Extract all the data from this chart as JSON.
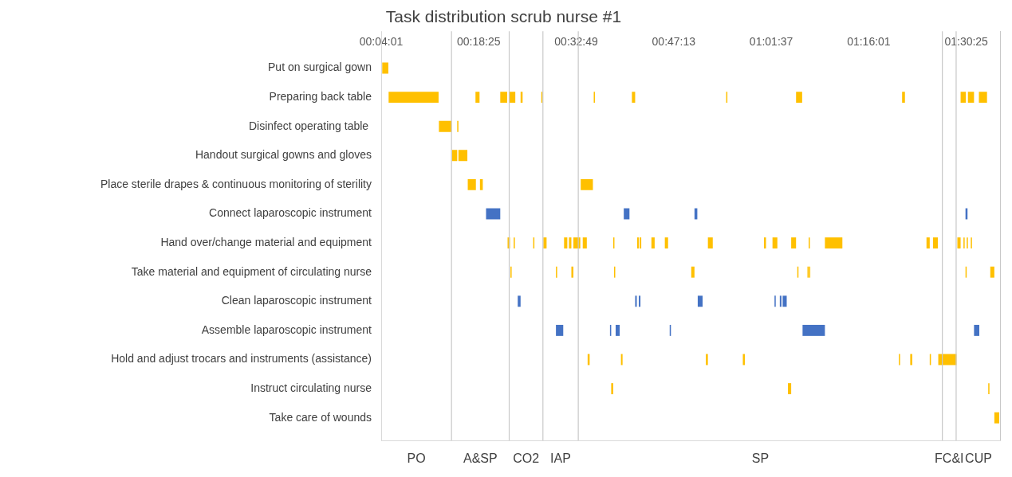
{
  "chart_data": {
    "type": "bar",
    "title": "Task distribution scrub nurse #1",
    "orientation": "horizontal",
    "categories": [
      "Put on surgical gown",
      "Preparing back table",
      "Disinfect operating table ",
      "Handout surgical gowns and gloves",
      "Place sterile drapes & continuous monitoring of sterility",
      "Connect laparoscopic instrument",
      "Hand over/change material and equipment",
      "Take material and equipment of circulating nurse",
      "Clean laparoscopic instrument",
      "Assemble laparoscopic instrument",
      "Hold and adjust trocars and instruments (assistance)",
      "Instruct circulating nurse",
      "Take care of wounds"
    ],
    "xlim": [
      0.066944,
      1.592
    ],
    "xticks": [
      {
        "value": 0.066944,
        "label": "00:04:01"
      },
      {
        "value": 0.306944,
        "label": "00:18:25"
      },
      {
        "value": 0.546944,
        "label": "00:32:49"
      },
      {
        "value": 0.786944,
        "label": "00:47:13"
      },
      {
        "value": 1.026944,
        "label": "01:01:37"
      },
      {
        "value": 1.266944,
        "label": "01:16:01"
      },
      {
        "value": 1.506944,
        "label": "01:30:25"
      }
    ],
    "legend": false,
    "ref_lines": [
      {
        "axis": "x",
        "value": 0.24,
        "color": "#c8c8c8"
      },
      {
        "axis": "x",
        "value": 0.382,
        "color": "#c8c8c8"
      },
      {
        "axis": "x",
        "value": 0.465,
        "color": "#c8c8c8"
      },
      {
        "axis": "x",
        "value": 0.552,
        "color": "#c8c8c8"
      },
      {
        "axis": "x",
        "value": 1.448,
        "color": "#c8c8c8"
      },
      {
        "axis": "x",
        "value": 1.482,
        "color": "#c8c8c8"
      }
    ],
    "annotations": [
      "PO",
      "A&SP",
      "CO2",
      "IAP",
      "SP",
      "FC&I",
      "CUP"
    ],
    "series": [
      {
        "colors": [
          "#ffc000",
          "#ffc000",
          "#ffc000",
          "#ffc000",
          "#ffc000",
          "#4472c4",
          "#ffc000",
          "#ffc000",
          "#4472c4",
          "#4472c4",
          "#ffc000",
          "#ffc000",
          "#ffc000"
        ],
        "base": [
          0.0695,
          0.0852,
          0.209,
          0.241,
          0.28,
          0.325,
          0.378,
          0.385,
          0.403,
          0.497,
          0.575,
          0.633,
          1.576
        ],
        "values": [
          0.015,
          0.123,
          0.031,
          0.013,
          0.02,
          0.035,
          0.006,
          0.003,
          0.007,
          0.018,
          0.005,
          0.005,
          0.012
        ]
      },
      {
        "colors": [
          "#ffc000",
          "#ffc000",
          "#ffc000",
          "#ffc000",
          "#ffc000",
          "#4472c4",
          "#ffc000",
          "#ffc000",
          "#4472c4",
          "#4472c4",
          "#ffc000",
          "#ffc000",
          "#ffc000"
        ],
        "base": [
          null,
          0.299,
          0.254,
          0.257,
          0.31,
          0.664,
          0.393,
          0.497,
          0.692,
          0.63,
          0.657,
          1.068,
          null
        ],
        "values": [
          null,
          0.01,
          0.003,
          0.022,
          0.007,
          0.014,
          0.003,
          0.003,
          0.004,
          0.003,
          0.004,
          0.008,
          null
        ]
      },
      {
        "colors": [
          "#ffc000",
          "#ffc000",
          "#ffc000",
          "#ffc000",
          "#ffc000",
          "#4472c4",
          "#ffc000",
          "#ffc000",
          "#4472c4",
          "#4472c4",
          "#ffc000",
          "#ffc000",
          "#ffc000"
        ],
        "base": [
          null,
          0.36,
          null,
          null,
          0.558,
          0.838,
          0.441,
          0.535,
          0.701,
          0.644,
          0.866,
          1.561,
          null
        ],
        "values": [
          null,
          0.017,
          null,
          null,
          0.03,
          0.007,
          0.003,
          0.005,
          0.004,
          0.01,
          0.005,
          0.003,
          null
        ]
      },
      {
        "colors": [
          "#ffc000",
          "#ffc000",
          "#ffc000",
          "#ffc000",
          "#ffc000",
          "#4472c4",
          "#ffc000",
          "#ffc000",
          "#4472c4",
          "#4472c4",
          "#ffc000",
          "#ffc000",
          "#ffc000"
        ],
        "base": [
          null,
          0.383,
          null,
          null,
          null,
          1.505,
          0.466,
          0.64,
          0.846,
          0.777,
          0.957,
          null,
          null
        ],
        "values": [
          null,
          0.014,
          null,
          null,
          null,
          0.005,
          0.008,
          0.003,
          0.012,
          0.003,
          0.005,
          null,
          null
        ]
      },
      {
        "colors": [
          "#ffc000",
          "#ffc000",
          "#ffc000",
          "#ffc000",
          "#ffc000",
          "#4472c4",
          "#ffc000",
          "#ffc000",
          "#4472c4",
          "#4472c4",
          "#ffc000",
          "#ffc000",
          "#ffc000"
        ],
        "base": [
          null,
          0.41,
          null,
          null,
          null,
          null,
          0.517,
          0.83,
          1.035,
          1.104,
          1.341,
          null,
          null
        ],
        "values": [
          null,
          0.005,
          null,
          null,
          null,
          null,
          0.008,
          0.008,
          0.003,
          0.055,
          0.003,
          null,
          null
        ]
      },
      {
        "colors": [
          "#ffc000",
          "#ffc000",
          "#ffc000",
          "#ffc000",
          "#ffc000",
          "#4472c4",
          "#ffc000",
          "#ffc000",
          "#4472c4",
          "#4472c4",
          "#ffc000",
          "#ffc000",
          "#ffc000"
        ],
        "base": [
          null,
          0.461,
          null,
          null,
          null,
          null,
          0.529,
          1.091,
          1.048,
          1.526,
          1.369,
          null,
          null
        ],
        "values": [
          null,
          0.003,
          null,
          null,
          null,
          null,
          0.006,
          0.003,
          0.004,
          0.013,
          0.005,
          null,
          null
        ]
      },
      {
        "colors": [
          "#ffc000",
          "#ffc000",
          "#ffc000",
          "#ffc000",
          "#ffc000",
          "#4472c4",
          "#ffc000",
          "#ffc000",
          "#4472c4",
          "#4472c4",
          "#ffc000",
          "#ffc000",
          "#ffc000"
        ],
        "base": [
          null,
          0.59,
          null,
          null,
          null,
          null,
          0.54,
          1.116,
          1.055,
          null,
          1.417,
          null,
          null
        ],
        "values": [
          null,
          0.003,
          null,
          null,
          null,
          null,
          0.017,
          0.003,
          0.01,
          null,
          0.003,
          null,
          null
        ]
      },
      {
        "color": "#ffc000",
        "base": [
          null,
          0.684,
          null,
          null,
          null,
          null,
          0.563,
          1.12,
          null,
          null,
          1.438,
          null,
          null
        ],
        "values": [
          null,
          0.008,
          null,
          null,
          null,
          null,
          0.01,
          0.003,
          null,
          null,
          0.045,
          null,
          null
        ]
      },
      {
        "color": "#ffc000",
        "base": [
          null,
          0.916,
          null,
          null,
          null,
          null,
          0.638,
          1.505,
          null,
          null,
          null,
          null,
          null
        ],
        "values": [
          null,
          0.003,
          null,
          null,
          null,
          null,
          0.003,
          0.003,
          null,
          null,
          null,
          null,
          null
        ]
      },
      {
        "color": "#ffc000",
        "base": [
          null,
          1.088,
          null,
          null,
          null,
          null,
          0.697,
          1.566,
          null,
          null,
          null,
          null,
          null
        ],
        "values": [
          null,
          0.015,
          null,
          null,
          null,
          null,
          0.004,
          0.01,
          null,
          null,
          null,
          null,
          null
        ]
      },
      {
        "color": "#ffc000",
        "base": [
          null,
          1.349,
          null,
          null,
          null,
          null,
          0.703,
          null,
          null,
          null,
          null,
          null,
          null
        ],
        "values": [
          null,
          0.007,
          null,
          null,
          null,
          null,
          0.004,
          null,
          null,
          null,
          null,
          null,
          null
        ]
      },
      {
        "color": "#ffc000",
        "base": [
          null,
          1.493,
          null,
          null,
          null,
          null,
          0.732,
          null,
          null,
          null,
          null,
          null,
          null
        ],
        "values": [
          null,
          0.013,
          null,
          null,
          null,
          null,
          0.008,
          null,
          null,
          null,
          null,
          null,
          null
        ]
      },
      {
        "color": "#ffc000",
        "base": [
          null,
          1.511,
          null,
          null,
          null,
          null,
          0.765,
          null,
          null,
          null,
          null,
          null,
          null
        ],
        "values": [
          null,
          0.015,
          null,
          null,
          null,
          null,
          0.008,
          null,
          null,
          null,
          null,
          null,
          null
        ]
      },
      {
        "color": "#ffc000",
        "base": [
          null,
          1.538,
          null,
          null,
          null,
          null,
          0.871,
          null,
          null,
          null,
          null,
          null,
          null
        ],
        "values": [
          null,
          0.02,
          null,
          null,
          null,
          null,
          0.012,
          null,
          null,
          null,
          null,
          null,
          null
        ]
      },
      {
        "color": "#ffc000",
        "base": [
          null,
          null,
          null,
          null,
          null,
          null,
          1.009,
          null,
          null,
          null,
          null,
          null,
          null
        ],
        "values": [
          null,
          null,
          null,
          null,
          null,
          null,
          0.005,
          null,
          null,
          null,
          null,
          null,
          null
        ]
      },
      {
        "color": "#ffc000",
        "base": [
          null,
          null,
          null,
          null,
          null,
          null,
          1.03,
          null,
          null,
          null,
          null,
          null,
          null
        ],
        "values": [
          null,
          null,
          null,
          null,
          null,
          null,
          0.012,
          null,
          null,
          null,
          null,
          null,
          null
        ]
      },
      {
        "color": "#ffc000",
        "base": [
          null,
          null,
          null,
          null,
          null,
          null,
          1.076,
          null,
          null,
          null,
          null,
          null,
          null
        ],
        "values": [
          null,
          null,
          null,
          null,
          null,
          null,
          0.012,
          null,
          null,
          null,
          null,
          null,
          null
        ]
      },
      {
        "color": "#ffc000",
        "base": [
          null,
          null,
          null,
          null,
          null,
          null,
          1.119,
          null,
          null,
          null,
          null,
          null,
          null
        ],
        "values": [
          null,
          null,
          null,
          null,
          null,
          null,
          0.003,
          null,
          null,
          null,
          null,
          null,
          null
        ]
      },
      {
        "color": "#ffc000",
        "base": [
          null,
          null,
          null,
          null,
          null,
          null,
          1.159,
          null,
          null,
          null,
          null,
          null,
          null
        ],
        "values": [
          null,
          null,
          null,
          null,
          null,
          null,
          0.043,
          null,
          null,
          null,
          null,
          null,
          null
        ]
      },
      {
        "color": "#ffc000",
        "base": [
          null,
          null,
          null,
          null,
          null,
          null,
          1.409,
          null,
          null,
          null,
          null,
          null,
          null
        ],
        "values": [
          null,
          null,
          null,
          null,
          null,
          null,
          0.008,
          null,
          null,
          null,
          null,
          null,
          null
        ]
      },
      {
        "color": "#ffc000",
        "base": [
          null,
          null,
          null,
          null,
          null,
          null,
          1.425,
          null,
          null,
          null,
          null,
          null,
          null
        ],
        "values": [
          null,
          null,
          null,
          null,
          null,
          null,
          0.012,
          null,
          null,
          null,
          null,
          null,
          null
        ]
      },
      {
        "color": "#ffc000",
        "base": [
          null,
          null,
          null,
          null,
          null,
          null,
          1.485,
          null,
          null,
          null,
          null,
          null,
          null
        ],
        "values": [
          null,
          null,
          null,
          null,
          null,
          null,
          0.008,
          null,
          null,
          null,
          null,
          null,
          null
        ]
      },
      {
        "color": "#ffc000",
        "base": [
          null,
          null,
          null,
          null,
          null,
          null,
          1.5,
          null,
          null,
          null,
          null,
          null,
          null
        ],
        "values": [
          null,
          null,
          null,
          null,
          null,
          null,
          0.003,
          null,
          null,
          null,
          null,
          null,
          null
        ]
      },
      {
        "color": "#ffc000",
        "base": [
          null,
          null,
          null,
          null,
          null,
          null,
          1.508,
          null,
          null,
          null,
          null,
          null,
          null
        ],
        "values": [
          null,
          null,
          null,
          null,
          null,
          null,
          0.003,
          null,
          null,
          null,
          null,
          null,
          null
        ]
      },
      {
        "color": "#ffc000",
        "base": [
          null,
          null,
          null,
          null,
          null,
          null,
          1.518,
          null,
          null,
          null,
          null,
          null,
          null
        ],
        "values": [
          null,
          null,
          null,
          null,
          null,
          null,
          0.003,
          null,
          null,
          null,
          null,
          null,
          null
        ]
      }
    ]
  }
}
